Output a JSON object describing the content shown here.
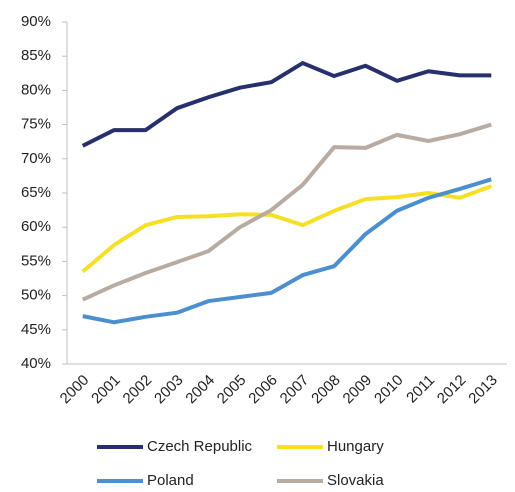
{
  "chart_data": {
    "type": "line",
    "categories": [
      "2000",
      "2001",
      "2002",
      "2003",
      "2004",
      "2005",
      "2006",
      "2007",
      "2008",
      "2009",
      "2010",
      "2011",
      "2012",
      "2013"
    ],
    "series": [
      {
        "name": "Czech Republic",
        "color": "#27306b",
        "values": [
          71.9,
          74.2,
          74.2,
          77.4,
          79.0,
          80.4,
          81.2,
          84.0,
          82.1,
          83.6,
          81.4,
          82.8,
          82.2,
          82.2
        ]
      },
      {
        "name": "Hungary",
        "color": "#f5e025",
        "values": [
          53.5,
          57.4,
          60.3,
          61.5,
          61.6,
          61.9,
          61.8,
          60.3,
          62.4,
          64.1,
          64.4,
          65.0,
          64.3,
          66.0
        ]
      },
      {
        "name": "Poland",
        "color": "#4b8fcf",
        "values": [
          47.0,
          46.1,
          46.9,
          47.5,
          49.2,
          49.8,
          50.4,
          53.0,
          54.3,
          59.0,
          62.4,
          64.3,
          65.6,
          67.0
        ]
      },
      {
        "name": "Slovakia",
        "color": "#b8aba2",
        "values": [
          49.4,
          51.5,
          53.3,
          54.9,
          56.5,
          60.0,
          62.5,
          66.2,
          71.7,
          71.6,
          73.5,
          72.6,
          73.6,
          75.0
        ]
      }
    ],
    "ylim": [
      40,
      90
    ],
    "yticks": [
      {
        "value": 40,
        "label": "40%"
      },
      {
        "value": 45,
        "label": "45%"
      },
      {
        "value": 50,
        "label": "50%"
      },
      {
        "value": 55,
        "label": "55%"
      },
      {
        "value": 60,
        "label": "60%"
      },
      {
        "value": 65,
        "label": "65%"
      },
      {
        "value": 70,
        "label": "70%"
      },
      {
        "value": 75,
        "label": "75%"
      },
      {
        "value": 80,
        "label": "80%"
      },
      {
        "value": 85,
        "label": "85%"
      },
      {
        "value": 90,
        "label": "90%"
      }
    ],
    "grid": false
  }
}
